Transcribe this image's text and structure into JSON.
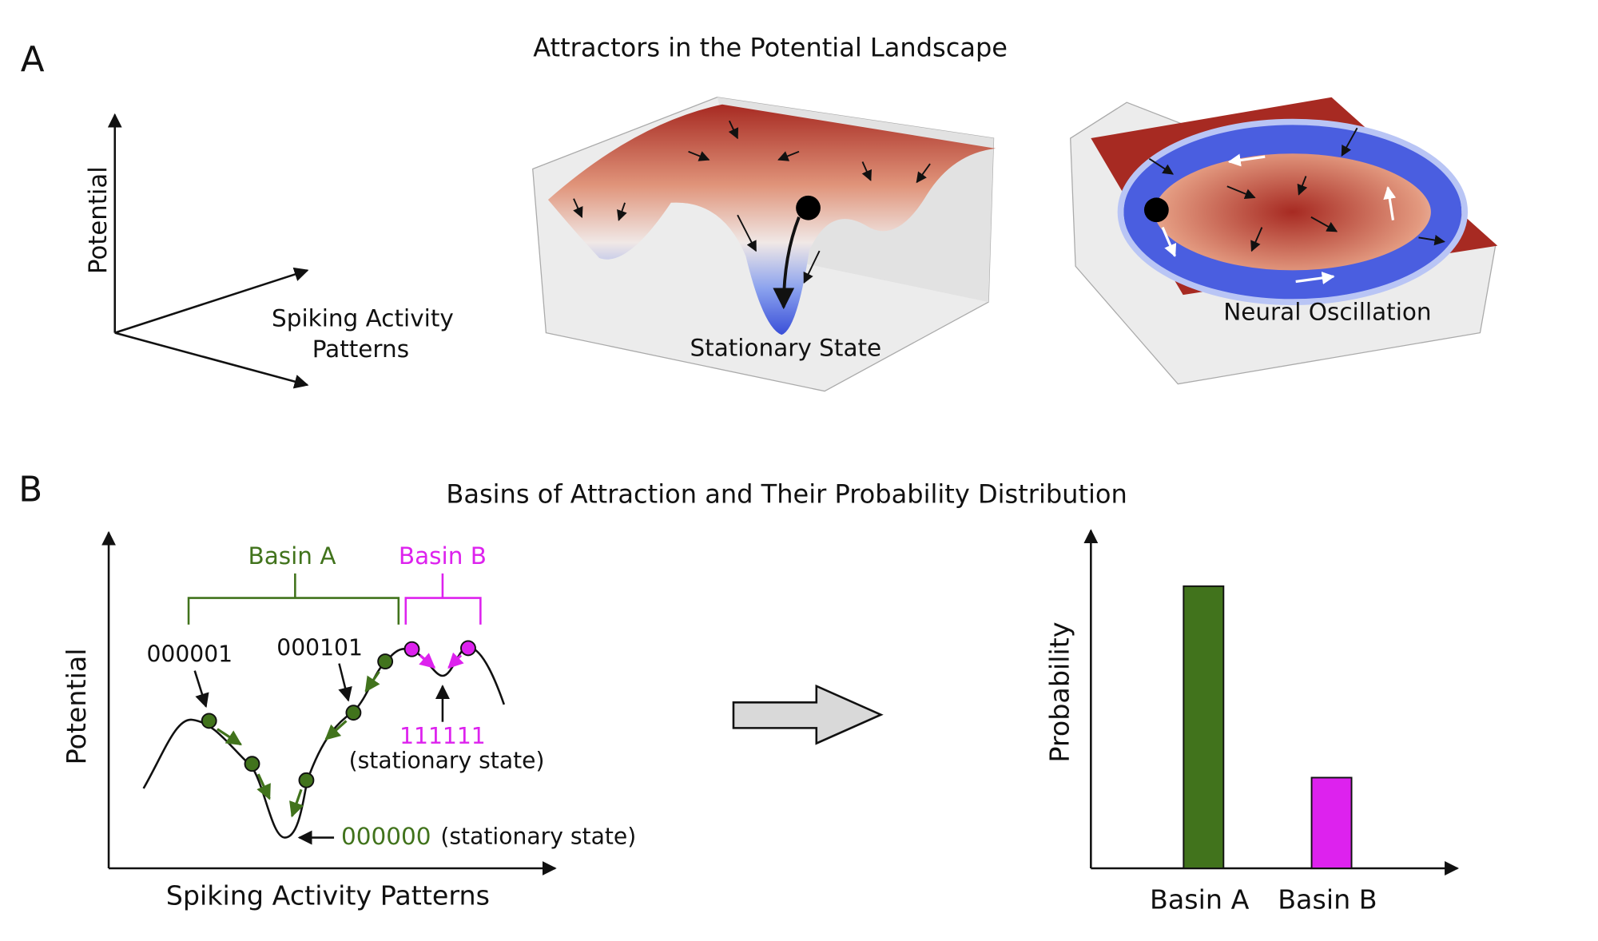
{
  "panel_a": {
    "label": "A",
    "title": "Attractors in the Potential Landscape",
    "axes": {
      "y_label": "Potential",
      "x_label": [
        "Spiking Activity",
        "Patterns"
      ]
    },
    "surfaces": [
      {
        "label": "Stationary State"
      },
      {
        "label": "Neural Oscillation"
      }
    ]
  },
  "panel_b": {
    "label": "B",
    "title": "Basins of Attraction and Their Probability Distribution",
    "landscape": {
      "y_label": "Potential",
      "x_label": "Spiking Activity Patterns",
      "basins": [
        "Basin A",
        "Basin B"
      ],
      "annotations": [
        {
          "pattern": "000001"
        },
        {
          "pattern": "000101"
        },
        {
          "pattern": "111111",
          "note": "(stationary state)"
        },
        {
          "pattern": "000000",
          "note": "(stationary state)"
        }
      ]
    }
  },
  "chart_data": {
    "type": "bar",
    "y_label": "Probability",
    "categories": [
      "Basin A",
      "Basin B"
    ],
    "values": [
      0.84,
      0.27
    ],
    "colors": [
      "#41731c",
      "#dd22ee"
    ],
    "ylim": [
      0,
      1
    ]
  }
}
